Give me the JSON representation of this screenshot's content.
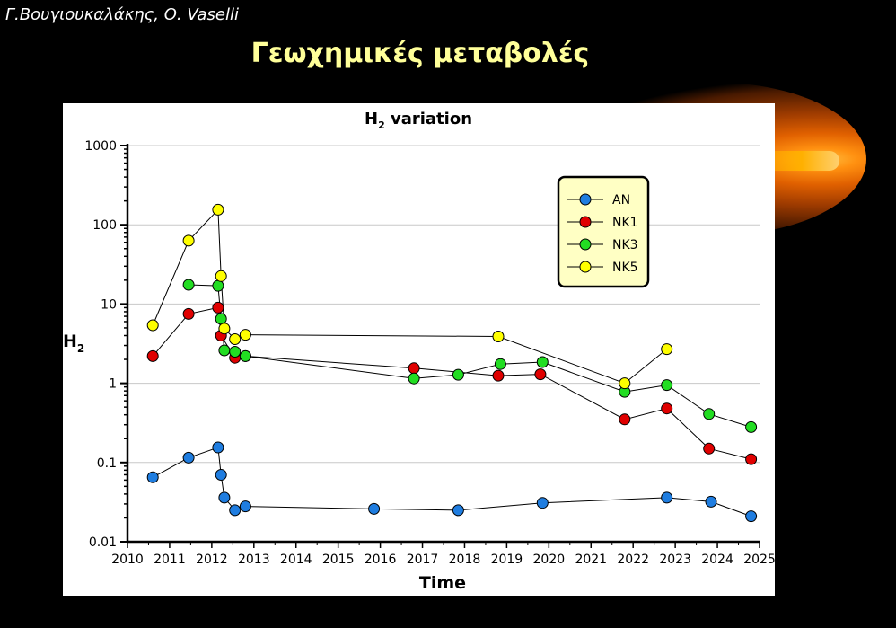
{
  "slide": {
    "authors": "Γ.Βουγιουκαλάκης, Ο. Vaselli",
    "title": "Γεωχημικές μεταβολές"
  },
  "chart_data": {
    "type": "line",
    "title": "H",
    "title_subscript": "2",
    "title_suffix": " variation",
    "ylabel": "H",
    "ylabel_subscript": "2",
    "xlabel": "Time",
    "y_scale": "log",
    "ylim": [
      0.01,
      1000
    ],
    "xlim": [
      2010,
      2025
    ],
    "x_ticks": [
      "2010",
      "2011",
      "2012",
      "2013",
      "2014",
      "2015",
      "2016",
      "2017",
      "2018",
      "2019",
      "2020",
      "2021",
      "2022",
      "2023",
      "2024",
      "2025"
    ],
    "y_ticks": [
      "0.01",
      "0.1",
      "1",
      "10",
      "100",
      "1000"
    ],
    "grid": true,
    "legend_position": "top-right",
    "series": [
      {
        "name": "AN",
        "color": "#1f7de0",
        "x": [
          2010.6,
          2011.45,
          2012.15,
          2012.22,
          2012.3,
          2012.55,
          2012.8,
          2015.85,
          2017.85,
          2019.85,
          2022.8,
          2023.85,
          2024.8
        ],
        "y": [
          0.065,
          0.115,
          0.155,
          0.07,
          0.036,
          0.025,
          0.028,
          0.026,
          0.025,
          0.031,
          0.036,
          0.032,
          0.021
        ]
      },
      {
        "name": "NK1",
        "color": "#e00000",
        "x": [
          2010.6,
          2011.45,
          2012.15,
          2012.22,
          2012.55,
          2012.8,
          2016.8,
          2018.8,
          2019.8,
          2021.8,
          2022.8,
          2023.8,
          2024.8
        ],
        "y": [
          2.2,
          7.5,
          9.0,
          4.0,
          2.1,
          2.2,
          1.55,
          1.25,
          1.3,
          0.35,
          0.48,
          0.15,
          0.11
        ]
      },
      {
        "name": "NK3",
        "color": "#22dd22",
        "x": [
          2011.45,
          2012.15,
          2012.22,
          2012.3,
          2012.55,
          2012.8,
          2016.8,
          2017.85,
          2018.85,
          2019.85,
          2021.8,
          2022.8,
          2023.8,
          2024.8
        ],
        "y": [
          17.5,
          17.0,
          6.5,
          2.6,
          2.5,
          2.2,
          1.15,
          1.28,
          1.75,
          1.85,
          0.78,
          0.95,
          0.41,
          0.28
        ]
      },
      {
        "name": "NK5",
        "color": "#ffff00",
        "x": [
          2010.6,
          2011.45,
          2012.15,
          2012.22,
          2012.3,
          2012.55,
          2012.8,
          2018.8,
          2021.8,
          2022.8
        ],
        "y": [
          5.4,
          63,
          155,
          22.5,
          4.9,
          3.6,
          4.1,
          3.9,
          1.0,
          2.7
        ]
      }
    ]
  }
}
